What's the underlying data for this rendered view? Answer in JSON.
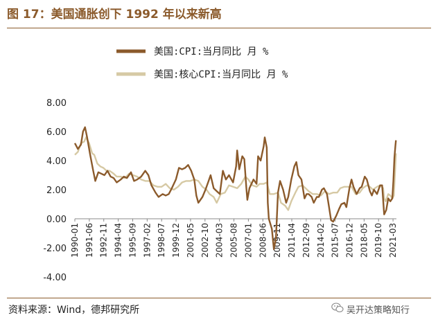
{
  "header": {
    "title": "图 17：美国通胀创下 1992 年以来新高"
  },
  "footer": {
    "source": "资料来源：Wind，德邦研究所",
    "watermark": "吴开达策略知行"
  },
  "colors": {
    "cpi": "#8b5a2b",
    "core_cpi": "#d6c9a4",
    "accent": "#8b5a2b",
    "axis": "#888888"
  },
  "chart_data": {
    "type": "line",
    "title": "美国通胀创下 1992 年以来新高",
    "xlabel": "",
    "ylabel": "",
    "ylim": [
      -4,
      8
    ],
    "yticks": [
      "8.00",
      "6.00",
      "4.00",
      "2.00",
      "0.00",
      "-2.00",
      "-4.00"
    ],
    "xticks": [
      "1990-01",
      "1991-06",
      "1992-11",
      "1994-04",
      "1995-09",
      "1997-02",
      "1998-07",
      "1999-12",
      "2001-05",
      "2002-10",
      "2004-03",
      "2005-08",
      "2007-01",
      "2008-06",
      "2009-11",
      "2011-04",
      "2012-09",
      "2014-02",
      "2015-07",
      "2016-12",
      "2018-05",
      "2019-10",
      "2021-03"
    ],
    "xrange": [
      1990.0,
      2021.5
    ],
    "legend": "top-center",
    "grid": false,
    "series": [
      {
        "name": "美国:CPI:当月同比  月  %",
        "points": [
          [
            1990.0,
            5.2
          ],
          [
            1990.3,
            4.8
          ],
          [
            1990.6,
            5.1
          ],
          [
            1990.8,
            6.0
          ],
          [
            1991.0,
            6.3
          ],
          [
            1991.2,
            5.6
          ],
          [
            1991.5,
            4.4
          ],
          [
            1991.8,
            3.3
          ],
          [
            1992.0,
            2.6
          ],
          [
            1992.3,
            3.2
          ],
          [
            1992.6,
            3.1
          ],
          [
            1992.9,
            3.0
          ],
          [
            1993.2,
            3.3
          ],
          [
            1993.5,
            2.9
          ],
          [
            1993.8,
            2.8
          ],
          [
            1994.1,
            2.5
          ],
          [
            1994.5,
            2.7
          ],
          [
            1994.8,
            2.9
          ],
          [
            1995.1,
            2.8
          ],
          [
            1995.5,
            3.2
          ],
          [
            1995.8,
            2.6
          ],
          [
            1996.1,
            2.7
          ],
          [
            1996.5,
            2.9
          ],
          [
            1996.9,
            3.3
          ],
          [
            1997.2,
            3.0
          ],
          [
            1997.5,
            2.3
          ],
          [
            1997.9,
            1.8
          ],
          [
            1998.2,
            1.5
          ],
          [
            1998.6,
            1.7
          ],
          [
            1998.9,
            1.6
          ],
          [
            1999.2,
            1.7
          ],
          [
            1999.5,
            2.1
          ],
          [
            1999.9,
            2.7
          ],
          [
            2000.2,
            3.5
          ],
          [
            2000.5,
            3.4
          ],
          [
            2000.8,
            3.5
          ],
          [
            2001.1,
            3.7
          ],
          [
            2001.4,
            3.3
          ],
          [
            2001.7,
            2.7
          ],
          [
            2001.9,
            1.6
          ],
          [
            2002.1,
            1.1
          ],
          [
            2002.5,
            1.5
          ],
          [
            2002.8,
            2.0
          ],
          [
            2003.1,
            2.6
          ],
          [
            2003.3,
            3.0
          ],
          [
            2003.6,
            2.1
          ],
          [
            2003.9,
            1.9
          ],
          [
            2004.2,
            1.7
          ],
          [
            2004.5,
            3.3
          ],
          [
            2004.8,
            2.7
          ],
          [
            2005.1,
            3.0
          ],
          [
            2005.5,
            2.5
          ],
          [
            2005.8,
            3.6
          ],
          [
            2005.9,
            4.7
          ],
          [
            2006.1,
            3.4
          ],
          [
            2006.4,
            4.3
          ],
          [
            2006.6,
            4.1
          ],
          [
            2006.8,
            2.1
          ],
          [
            2006.9,
            1.3
          ],
          [
            2007.1,
            2.1
          ],
          [
            2007.5,
            2.7
          ],
          [
            2007.8,
            2.4
          ],
          [
            2007.95,
            4.3
          ],
          [
            2008.2,
            4.0
          ],
          [
            2008.5,
            5.0
          ],
          [
            2008.6,
            5.6
          ],
          [
            2008.8,
            4.9
          ],
          [
            2008.9,
            1.1
          ],
          [
            2009.0,
            0.0
          ],
          [
            2009.3,
            -0.7
          ],
          [
            2009.5,
            -2.1
          ],
          [
            2009.7,
            -1.3
          ],
          [
            2009.9,
            1.8
          ],
          [
            2010.1,
            2.6
          ],
          [
            2010.4,
            2.0
          ],
          [
            2010.7,
            1.1
          ],
          [
            2010.9,
            1.5
          ],
          [
            2011.2,
            2.7
          ],
          [
            2011.5,
            3.6
          ],
          [
            2011.7,
            3.9
          ],
          [
            2011.9,
            3.0
          ],
          [
            2012.2,
            2.7
          ],
          [
            2012.5,
            1.4
          ],
          [
            2012.7,
            1.7
          ],
          [
            2012.9,
            1.7
          ],
          [
            2013.2,
            1.5
          ],
          [
            2013.4,
            1.1
          ],
          [
            2013.7,
            1.5
          ],
          [
            2013.9,
            1.5
          ],
          [
            2014.2,
            2.0
          ],
          [
            2014.4,
            2.1
          ],
          [
            2014.7,
            1.7
          ],
          [
            2014.9,
            0.8
          ],
          [
            2015.1,
            -0.1
          ],
          [
            2015.3,
            -0.2
          ],
          [
            2015.6,
            0.2
          ],
          [
            2015.9,
            0.7
          ],
          [
            2016.1,
            1.0
          ],
          [
            2016.4,
            1.1
          ],
          [
            2016.6,
            0.8
          ],
          [
            2016.9,
            2.1
          ],
          [
            2017.1,
            2.7
          ],
          [
            2017.3,
            2.2
          ],
          [
            2017.6,
            1.7
          ],
          [
            2017.9,
            2.1
          ],
          [
            2018.1,
            2.2
          ],
          [
            2018.4,
            2.9
          ],
          [
            2018.6,
            2.7
          ],
          [
            2018.9,
            1.9
          ],
          [
            2019.1,
            1.6
          ],
          [
            2019.3,
            2.0
          ],
          [
            2019.6,
            1.7
          ],
          [
            2019.9,
            2.3
          ],
          [
            2020.1,
            2.3
          ],
          [
            2020.3,
            0.3
          ],
          [
            2020.5,
            0.6
          ],
          [
            2020.7,
            1.4
          ],
          [
            2020.9,
            1.2
          ],
          [
            2021.1,
            1.4
          ],
          [
            2021.2,
            2.6
          ],
          [
            2021.3,
            4.2
          ],
          [
            2021.4,
            5.0
          ],
          [
            2021.45,
            5.4
          ]
        ]
      },
      {
        "name": "美国:核心CPI:当月同比  月  %",
        "points": [
          [
            1990.0,
            4.4
          ],
          [
            1990.3,
            4.6
          ],
          [
            1990.6,
            5.2
          ],
          [
            1990.9,
            5.3
          ],
          [
            1991.1,
            5.6
          ],
          [
            1991.4,
            5.2
          ],
          [
            1991.7,
            4.5
          ],
          [
            1991.9,
            4.4
          ],
          [
            1992.2,
            3.8
          ],
          [
            1992.5,
            3.6
          ],
          [
            1992.8,
            3.5
          ],
          [
            1993.1,
            3.3
          ],
          [
            1993.4,
            3.3
          ],
          [
            1993.8,
            3.1
          ],
          [
            1994.1,
            2.9
          ],
          [
            1994.5,
            2.9
          ],
          [
            1994.9,
            2.8
          ],
          [
            1995.3,
            3.1
          ],
          [
            1995.7,
            3.0
          ],
          [
            1996.1,
            2.9
          ],
          [
            1996.5,
            2.7
          ],
          [
            1996.9,
            2.6
          ],
          [
            1997.3,
            2.6
          ],
          [
            1997.7,
            2.3
          ],
          [
            1998.1,
            2.2
          ],
          [
            1998.5,
            2.2
          ],
          [
            1998.9,
            2.4
          ],
          [
            1999.3,
            2.1
          ],
          [
            1999.7,
            2.0
          ],
          [
            2000.1,
            2.2
          ],
          [
            2000.5,
            2.5
          ],
          [
            2000.9,
            2.6
          ],
          [
            2001.3,
            2.6
          ],
          [
            2001.7,
            2.7
          ],
          [
            2002.1,
            2.6
          ],
          [
            2002.5,
            2.2
          ],
          [
            2002.9,
            2.0
          ],
          [
            2003.2,
            1.7
          ],
          [
            2003.6,
            1.5
          ],
          [
            2003.9,
            1.1
          ],
          [
            2004.3,
            1.7
          ],
          [
            2004.7,
            1.8
          ],
          [
            2005.1,
            2.3
          ],
          [
            2005.5,
            2.2
          ],
          [
            2005.9,
            2.1
          ],
          [
            2006.3,
            2.4
          ],
          [
            2006.7,
            2.9
          ],
          [
            2007.0,
            2.7
          ],
          [
            2007.4,
            2.3
          ],
          [
            2007.8,
            2.2
          ],
          [
            2008.1,
            2.4
          ],
          [
            2008.5,
            2.4
          ],
          [
            2008.8,
            2.5
          ],
          [
            2009.1,
            1.7
          ],
          [
            2009.5,
            1.7
          ],
          [
            2009.9,
            1.8
          ],
          [
            2010.2,
            1.1
          ],
          [
            2010.6,
            0.9
          ],
          [
            2010.9,
            0.6
          ],
          [
            2011.2,
            1.2
          ],
          [
            2011.6,
            1.8
          ],
          [
            2011.9,
            2.2
          ],
          [
            2012.3,
            2.3
          ],
          [
            2012.6,
            2.1
          ],
          [
            2012.9,
            1.9
          ],
          [
            2013.3,
            1.7
          ],
          [
            2013.7,
            1.7
          ],
          [
            2014.1,
            1.6
          ],
          [
            2014.5,
            1.9
          ],
          [
            2014.9,
            1.7
          ],
          [
            2015.3,
            1.8
          ],
          [
            2015.7,
            1.8
          ],
          [
            2016.0,
            2.1
          ],
          [
            2016.4,
            2.2
          ],
          [
            2016.8,
            2.2
          ],
          [
            2017.1,
            2.2
          ],
          [
            2017.5,
            1.7
          ],
          [
            2017.9,
            1.8
          ],
          [
            2018.2,
            2.1
          ],
          [
            2018.6,
            2.3
          ],
          [
            2018.9,
            2.2
          ],
          [
            2019.2,
            2.0
          ],
          [
            2019.6,
            2.2
          ],
          [
            2019.9,
            2.3
          ],
          [
            2020.2,
            2.1
          ],
          [
            2020.3,
            1.4
          ],
          [
            2020.45,
            1.2
          ],
          [
            2020.7,
            1.7
          ],
          [
            2020.9,
            1.6
          ],
          [
            2021.1,
            1.4
          ],
          [
            2021.25,
            1.6
          ],
          [
            2021.35,
            3.0
          ],
          [
            2021.45,
            4.5
          ]
        ]
      }
    ]
  }
}
